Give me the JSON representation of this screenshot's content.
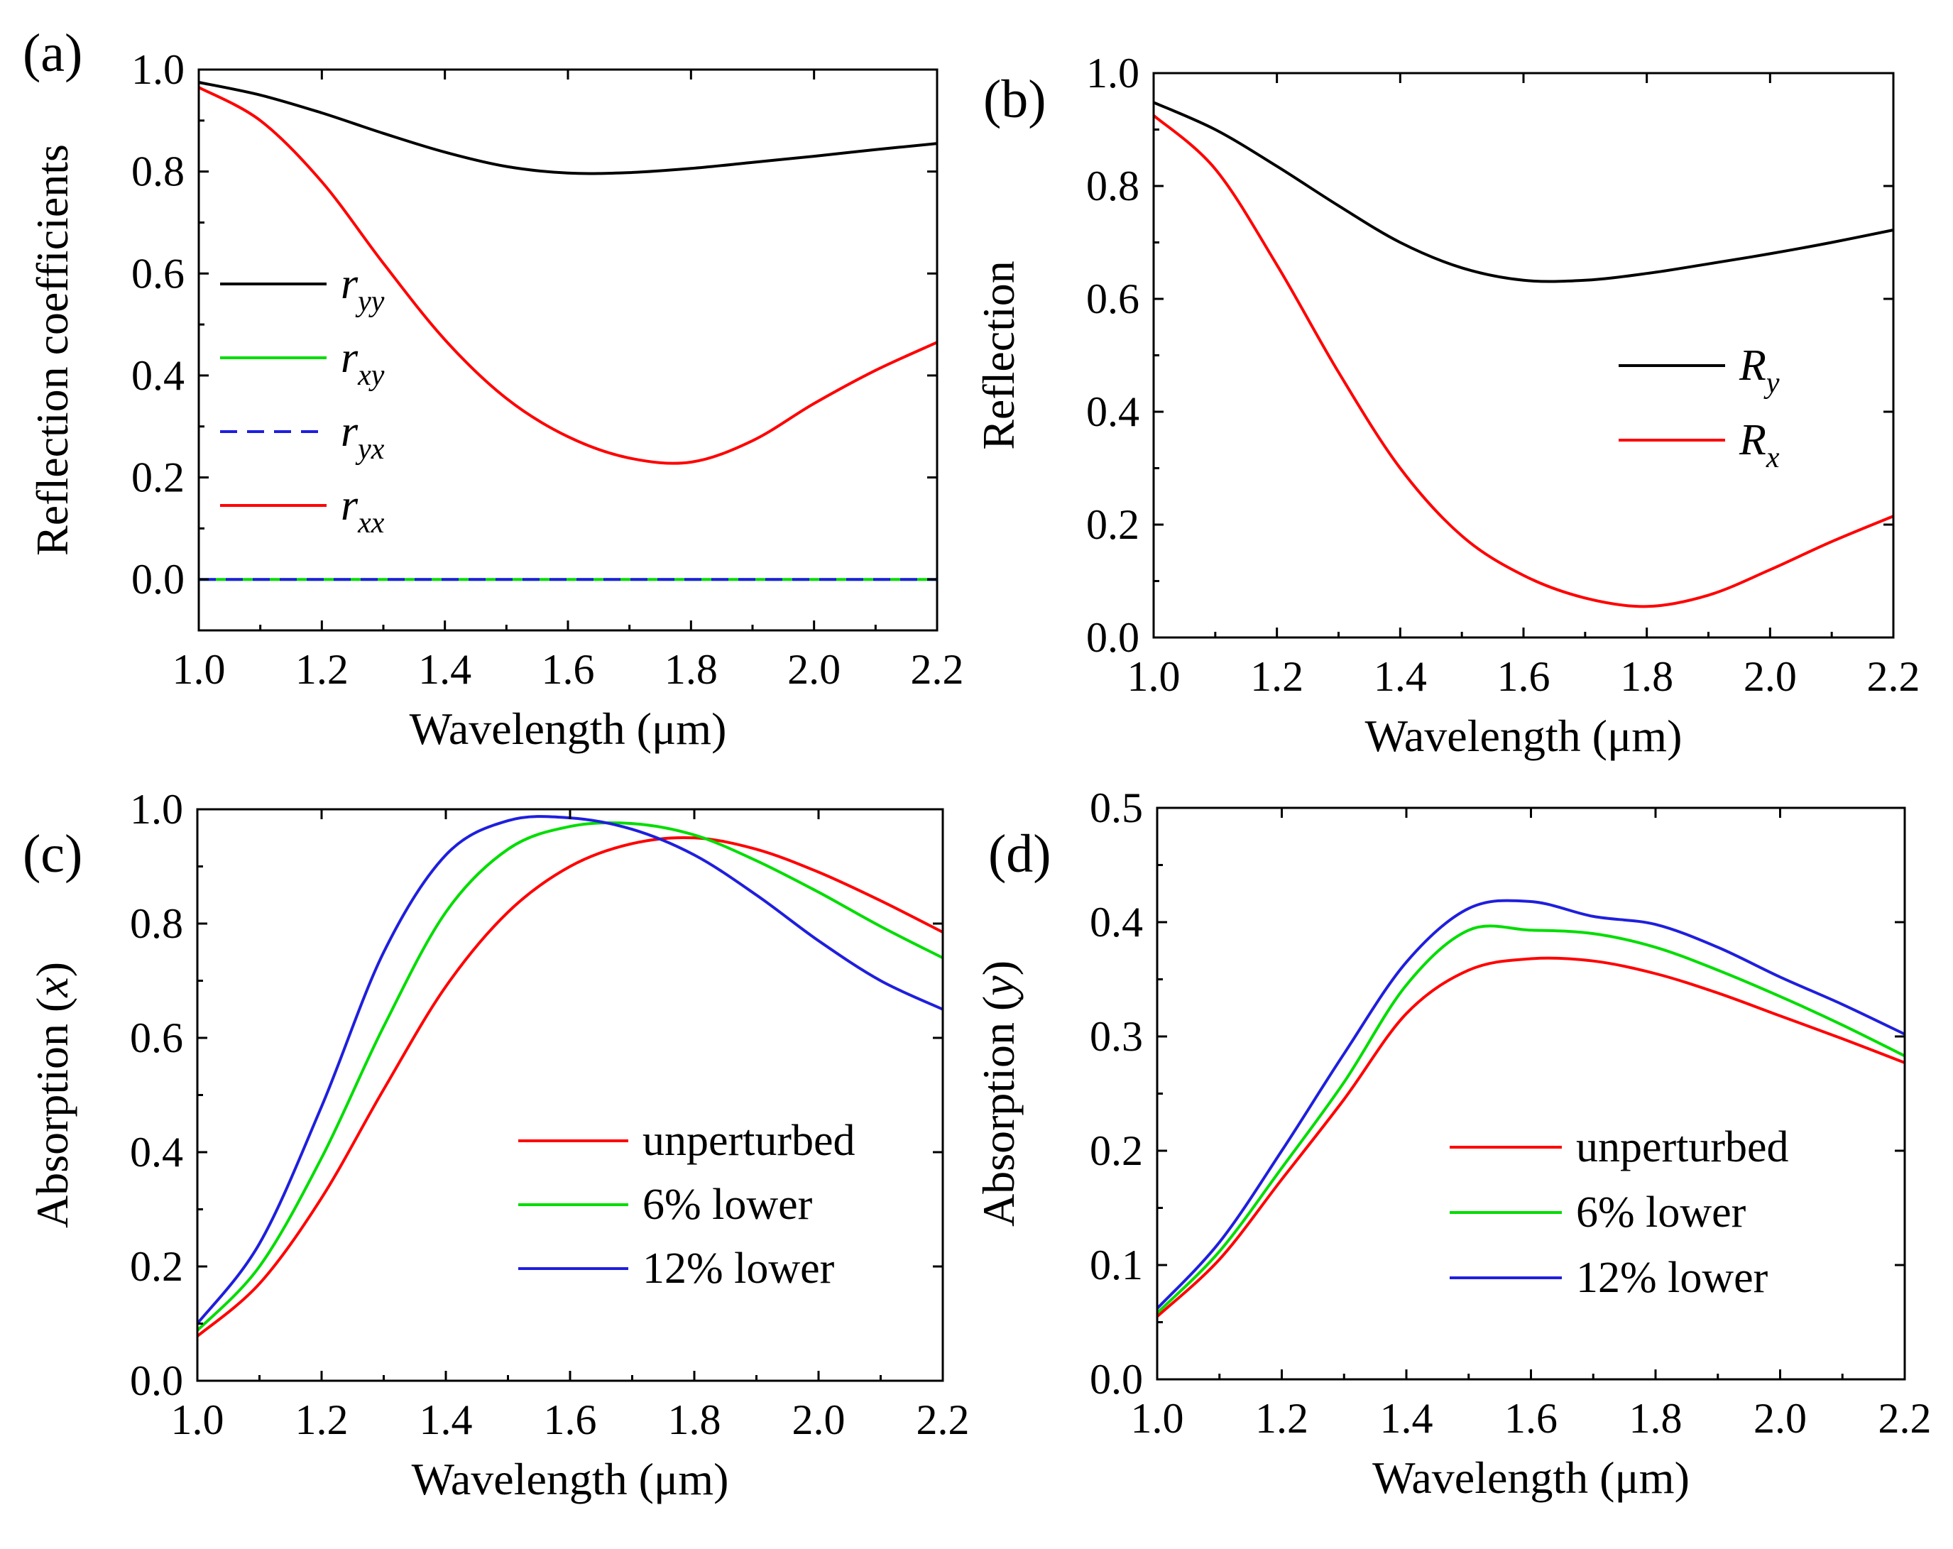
{
  "chart_data": [
    {
      "panel": "(a)",
      "type": "line",
      "xlabel": "Wavelength (μm)",
      "ylabel": "Reflection coefficients",
      "xlim": [
        1.0,
        2.2
      ],
      "ylim": [
        -0.1,
        1.0
      ],
      "xticks": [
        "1.0",
        "1.2",
        "1.4",
        "1.6",
        "1.8",
        "2.0",
        "2.2"
      ],
      "yticks": [
        "0.0",
        "0.2",
        "0.4",
        "0.6",
        "0.8",
        "1.0"
      ],
      "grid": false,
      "legend_position": "left",
      "series": [
        {
          "name": "r",
          "sub": "yy",
          "color": "#000000",
          "dash": false,
          "x": [
            1.0,
            1.1,
            1.2,
            1.3,
            1.4,
            1.5,
            1.6,
            1.7,
            1.8,
            1.9,
            2.0,
            2.1,
            2.2
          ],
          "y": [
            0.975,
            0.95,
            0.915,
            0.875,
            0.838,
            0.81,
            0.797,
            0.798,
            0.806,
            0.818,
            0.83,
            0.843,
            0.855
          ]
        },
        {
          "name": "r",
          "sub": "xy",
          "color": "#00dd00",
          "dash": false,
          "x": [
            1.0,
            2.2
          ],
          "y": [
            0.0,
            0.0
          ]
        },
        {
          "name": "r",
          "sub": "yx",
          "color": "#1f1fdd",
          "dash": true,
          "x": [
            1.0,
            2.2
          ],
          "y": [
            0.0,
            0.0
          ]
        },
        {
          "name": "r",
          "sub": "xx",
          "color": "#ff0000",
          "dash": false,
          "x": [
            1.0,
            1.1,
            1.2,
            1.3,
            1.4,
            1.5,
            1.6,
            1.7,
            1.8,
            1.9,
            2.0,
            2.1,
            2.2
          ],
          "y": [
            0.965,
            0.9,
            0.78,
            0.62,
            0.47,
            0.355,
            0.28,
            0.238,
            0.23,
            0.272,
            0.345,
            0.41,
            0.465
          ]
        }
      ]
    },
    {
      "panel": "(b)",
      "type": "line",
      "xlabel": "Wavelength (μm)",
      "ylabel": "Reflection",
      "xlim": [
        1.0,
        2.2
      ],
      "ylim": [
        0.0,
        1.0
      ],
      "xticks": [
        "1.0",
        "1.2",
        "1.4",
        "1.6",
        "1.8",
        "2.0",
        "2.2"
      ],
      "yticks": [
        "0.0",
        "0.2",
        "0.4",
        "0.6",
        "0.8",
        "1.0"
      ],
      "grid": false,
      "legend_position": "right",
      "series": [
        {
          "name": "R",
          "sub": "y",
          "color": "#000000",
          "dash": false,
          "x": [
            1.0,
            1.1,
            1.2,
            1.3,
            1.4,
            1.5,
            1.6,
            1.7,
            1.8,
            1.9,
            2.0,
            2.1,
            2.2
          ],
          "y": [
            0.948,
            0.9,
            0.835,
            0.765,
            0.7,
            0.655,
            0.633,
            0.633,
            0.645,
            0.662,
            0.68,
            0.7,
            0.722
          ]
        },
        {
          "name": "R",
          "sub": "x",
          "color": "#ff0000",
          "dash": false,
          "x": [
            1.0,
            1.1,
            1.2,
            1.3,
            1.4,
            1.5,
            1.6,
            1.7,
            1.8,
            1.9,
            2.0,
            2.1,
            2.2
          ],
          "y": [
            0.925,
            0.83,
            0.66,
            0.47,
            0.3,
            0.18,
            0.11,
            0.07,
            0.055,
            0.075,
            0.12,
            0.17,
            0.215
          ]
        }
      ]
    },
    {
      "panel": "(c)",
      "type": "line",
      "xlabel": "Wavelength (μm)",
      "ylabel": "Absorption (x)",
      "ylabel_main": "Absorption (",
      "ylabel_var": "x",
      "ylabel_end": ")",
      "xlim": [
        1.0,
        2.2
      ],
      "ylim": [
        0.0,
        1.0
      ],
      "xticks": [
        "1.0",
        "1.2",
        "1.4",
        "1.6",
        "1.8",
        "2.0",
        "2.2"
      ],
      "yticks": [
        "0.0",
        "0.2",
        "0.4",
        "0.6",
        "0.8",
        "1.0"
      ],
      "grid": false,
      "legend_position": "center-right",
      "series": [
        {
          "name": "unperturbed",
          "color": "#ff0000",
          "dash": false,
          "x": [
            1.0,
            1.1,
            1.2,
            1.3,
            1.4,
            1.5,
            1.6,
            1.7,
            1.8,
            1.9,
            2.0,
            2.1,
            2.2
          ],
          "y": [
            0.078,
            0.17,
            0.32,
            0.51,
            0.69,
            0.82,
            0.9,
            0.94,
            0.95,
            0.93,
            0.89,
            0.84,
            0.785
          ]
        },
        {
          "name": "6% lower",
          "color": "#00dd00",
          "dash": false,
          "x": [
            1.0,
            1.1,
            1.2,
            1.3,
            1.4,
            1.5,
            1.6,
            1.7,
            1.8,
            1.9,
            2.0,
            2.1,
            2.2
          ],
          "y": [
            0.088,
            0.2,
            0.39,
            0.62,
            0.82,
            0.93,
            0.97,
            0.975,
            0.955,
            0.91,
            0.855,
            0.795,
            0.74
          ]
        },
        {
          "name": "12% lower",
          "color": "#1f1fdd",
          "dash": false,
          "x": [
            1.0,
            1.1,
            1.2,
            1.3,
            1.4,
            1.5,
            1.6,
            1.7,
            1.8,
            1.9,
            2.0,
            2.1,
            2.2
          ],
          "y": [
            0.1,
            0.24,
            0.48,
            0.75,
            0.92,
            0.98,
            0.985,
            0.965,
            0.92,
            0.85,
            0.77,
            0.7,
            0.65
          ]
        }
      ]
    },
    {
      "panel": "(d)",
      "type": "line",
      "xlabel": "Wavelength (μm)",
      "ylabel": "Absorption (y)",
      "ylabel_main": "Absorption (",
      "ylabel_var": "y",
      "ylabel_end": ")",
      "xlim": [
        1.0,
        2.2
      ],
      "ylim": [
        0.0,
        0.5
      ],
      "xticks": [
        "1.0",
        "1.2",
        "1.4",
        "1.6",
        "1.8",
        "2.0",
        "2.2"
      ],
      "yticks": [
        "0.0",
        "0.1",
        "0.2",
        "0.3",
        "0.4",
        "0.5"
      ],
      "grid": false,
      "legend_position": "bottom-right",
      "series": [
        {
          "name": "unperturbed",
          "color": "#ff0000",
          "dash": false,
          "x": [
            1.0,
            1.1,
            1.2,
            1.3,
            1.4,
            1.5,
            1.6,
            1.7,
            1.8,
            1.9,
            2.0,
            2.1,
            2.2
          ],
          "y": [
            0.055,
            0.105,
            0.175,
            0.245,
            0.32,
            0.358,
            0.368,
            0.366,
            0.355,
            0.338,
            0.318,
            0.298,
            0.277
          ]
        },
        {
          "name": "6% lower",
          "color": "#00dd00",
          "dash": false,
          "x": [
            1.0,
            1.1,
            1.2,
            1.3,
            1.4,
            1.5,
            1.6,
            1.7,
            1.8,
            1.9,
            2.0,
            2.1,
            2.2
          ],
          "y": [
            0.058,
            0.112,
            0.185,
            0.26,
            0.345,
            0.393,
            0.393,
            0.39,
            0.378,
            0.358,
            0.335,
            0.31,
            0.283
          ]
        },
        {
          "name": "12% lower",
          "color": "#1f1fdd",
          "dash": false,
          "x": [
            1.0,
            1.1,
            1.2,
            1.3,
            1.4,
            1.5,
            1.6,
            1.7,
            1.8,
            1.9,
            2.0,
            2.1,
            2.2
          ],
          "y": [
            0.062,
            0.12,
            0.2,
            0.285,
            0.365,
            0.412,
            0.418,
            0.405,
            0.398,
            0.378,
            0.352,
            0.328,
            0.302
          ]
        }
      ]
    }
  ]
}
